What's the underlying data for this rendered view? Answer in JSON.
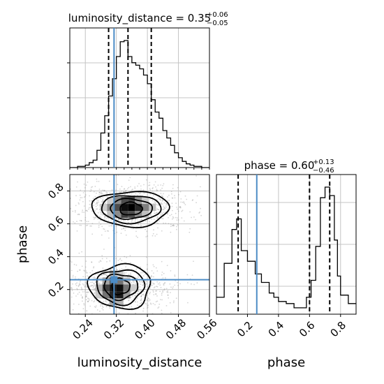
{
  "chart_data": {
    "type": "corner",
    "panels": [
      {
        "id": "luminosity_distance-hist",
        "type": "step-histogram",
        "parameter": "luminosity_distance",
        "title": {
          "base": "luminosity_distance = 0.35",
          "sup": "+0.06",
          "sub": "−0.05"
        },
        "x_range": [
          0.2,
          0.56
        ],
        "bin_edges": [
          0.2,
          0.22,
          0.24,
          0.25,
          0.26,
          0.27,
          0.28,
          0.29,
          0.3,
          0.31,
          0.32,
          0.33,
          0.34,
          0.35,
          0.36,
          0.37,
          0.38,
          0.39,
          0.4,
          0.41,
          0.42,
          0.43,
          0.44,
          0.45,
          0.46,
          0.47,
          0.48,
          0.49,
          0.5,
          0.51,
          0.52,
          0.53,
          0.54,
          0.55,
          0.56
        ],
        "counts": [
          0,
          1,
          2,
          4,
          6,
          14,
          28,
          42,
          58,
          72,
          90,
          102,
          103,
          90,
          85,
          83,
          80,
          75,
          68,
          55,
          45,
          40,
          30,
          24,
          18,
          12,
          8,
          5,
          3,
          2,
          1,
          1,
          0,
          0
        ],
        "quantiles": [
          0.3,
          0.35,
          0.41
        ],
        "truth": 0.314,
        "x_ticks": [
          "0.24",
          "0.32",
          "0.40",
          "0.48",
          "0.56"
        ],
        "xlabel": "luminosity_distance"
      },
      {
        "id": "phase-hist",
        "type": "step-histogram",
        "parameter": "phase",
        "title": {
          "base": "phase = 0.60",
          "sup": "+0.13",
          "sub": "−0.46"
        },
        "x_range": [
          0.0,
          0.9
        ],
        "bin_edges": [
          0.0,
          0.05,
          0.1,
          0.13,
          0.16,
          0.2,
          0.25,
          0.29,
          0.31,
          0.34,
          0.37,
          0.4,
          0.45,
          0.5,
          0.55,
          0.58,
          0.61,
          0.64,
          0.67,
          0.7,
          0.73,
          0.76,
          0.78,
          0.8,
          0.85,
          0.9
        ],
        "counts": [
          8,
          24,
          40,
          45,
          30,
          25,
          19,
          15,
          15,
          10,
          8,
          6,
          5,
          3,
          3,
          8,
          16,
          32,
          55,
          60,
          56,
          35,
          18,
          9,
          5
        ],
        "quantiles": [
          0.14,
          0.6,
          0.73
        ],
        "truth": 0.26,
        "x_ticks": [
          "0.2",
          "0.4",
          "0.6",
          "0.8"
        ],
        "xlabel": "phase"
      },
      {
        "id": "joint-2d",
        "type": "2d-density-contour",
        "x": "luminosity_distance",
        "y": "phase",
        "x_range": [
          0.2,
          0.56
        ],
        "y_range": [
          0.05,
          0.9
        ],
        "modes": [
          {
            "x": 0.35,
            "y": 0.7
          },
          {
            "x": 0.32,
            "y": 0.21
          }
        ],
        "truth": {
          "x": 0.314,
          "y": 0.26
        },
        "x_ticks": [
          "0.24",
          "0.32",
          "0.40",
          "0.48",
          "0.56"
        ],
        "y_ticks": [
          "0.2",
          "0.4",
          "0.6",
          "0.8"
        ],
        "xlabel": "luminosity_distance",
        "ylabel": "phase"
      }
    ],
    "grid": true,
    "colors": {
      "truth": "#4c8cc6",
      "line": "#000000",
      "grid": "#c4c4c4",
      "density_dark": "#000000"
    }
  }
}
